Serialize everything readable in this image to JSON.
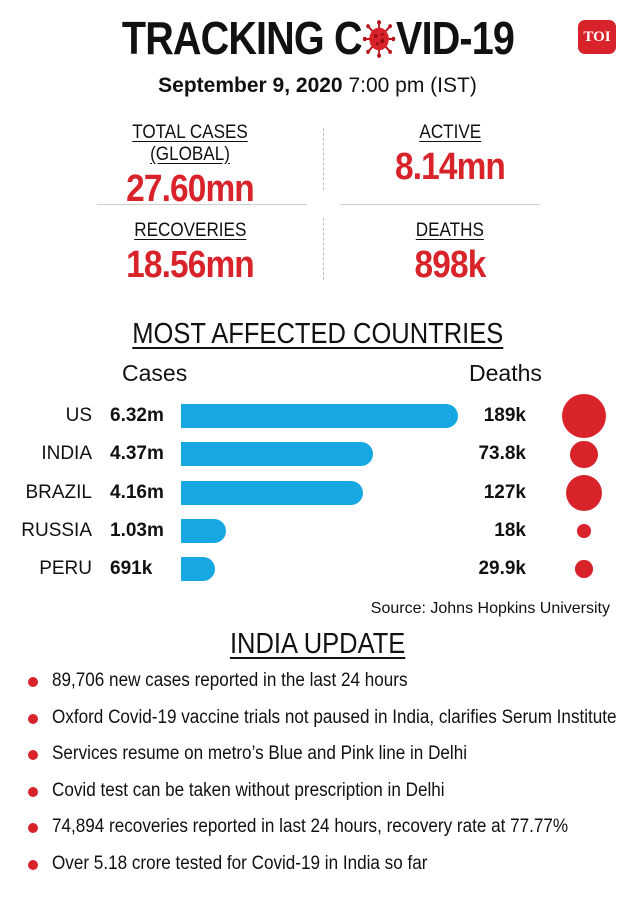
{
  "header": {
    "title_pre": "TRACKING C",
    "title_post": "VID-19",
    "logo_text": "TOI",
    "date_bold": "September 9, 2020",
    "time": "7:00 pm (IST)"
  },
  "stats": {
    "total_cases": {
      "label": "TOTAL CASES (GLOBAL)",
      "value": "27.60mn"
    },
    "active": {
      "label": "ACTIVE",
      "value": "8.14mn"
    },
    "recoveries": {
      "label": "RECOVERIES",
      "value": "18.56mn"
    },
    "deaths": {
      "label": "DEATHS",
      "value": "898k"
    }
  },
  "colors": {
    "accent": "#d8232a",
    "bar": "#17a7e2"
  },
  "chart_data": {
    "type": "bar",
    "title": "MOST AFFECTED COUNTRIES",
    "cases_label": "Cases",
    "deaths_label": "Deaths",
    "categories": [
      "US",
      "INDIA",
      "BRAZIL",
      "RUSSIA",
      "PERU"
    ],
    "series": [
      {
        "values": [
          6.32,
          4.37,
          4.16,
          1.03,
          0.691
        ],
        "labels": [
          "6.32m",
          "4.37m",
          "4.16m",
          "1.03m",
          "691k"
        ]
      },
      {
        "values": [
          189,
          73.8,
          127,
          18,
          29.9
        ],
        "labels": [
          "189k",
          "73.8k",
          "127k",
          "18k",
          "29.9k"
        ]
      }
    ],
    "source": "Source: Johns Hopkins University"
  },
  "india_update": {
    "title": "INDIA UPDATE",
    "items": [
      "89,706 new cases reported in the last 24 hours",
      "Oxford Covid-19 vaccine trials not paused in India, clarifies Serum Institute",
      "Services resume on metro’s Blue and Pink line in Delhi",
      "Covid test can be taken without prescription in Delhi",
      "74,894 recoveries reported in last 24 hours, recovery rate at 77.77%",
      "Over 5.18 crore tested for Covid-19 in India so far"
    ]
  }
}
